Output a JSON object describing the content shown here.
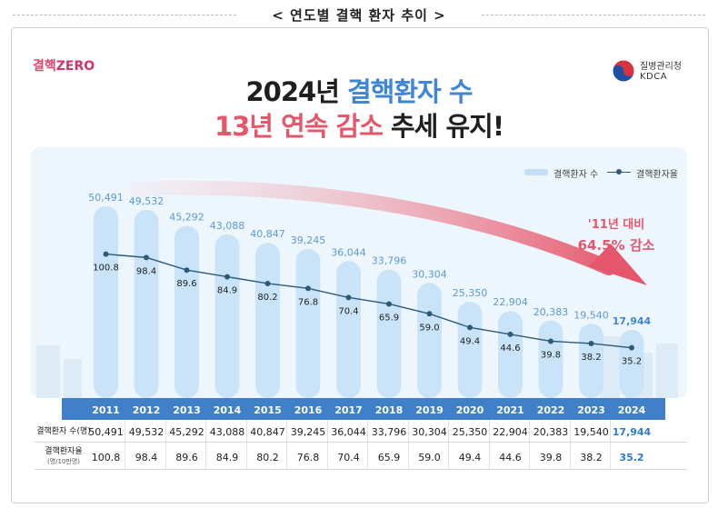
{
  "page_title": "< 연도별 결핵 환자 추이 >",
  "brand_logo": {
    "text": "결핵",
    "suffix": "ZERO"
  },
  "agency": {
    "name": "질병관리청",
    "abbr": "KDCA"
  },
  "headline": {
    "line1_year": "2024년",
    "line1_highlight": "결핵환자 수",
    "line2_highlight": "13년 연속 감소",
    "line2_rest": "추세 유지!"
  },
  "legend": {
    "bars": "결핵환자 수",
    "line": "결핵환자율"
  },
  "callout": {
    "line1": "'11년 대비",
    "line2": "64.5% 감소"
  },
  "table": {
    "row1_label": "결핵환자 수(명)",
    "row2_label": "결핵환자율",
    "row2_unit": "(명/10만명)"
  },
  "colors": {
    "bar": "#c9e4f9",
    "line": "#2d5a7b",
    "year_row": "#3f80c8",
    "highlight_blue": "#3f86d6",
    "highlight_red": "#e5566a"
  },
  "chart_data": {
    "type": "bar",
    "title": "2024년 결핵환자 수 13년 연속 감소 추세 유지!",
    "categories": [
      "2011",
      "2012",
      "2013",
      "2014",
      "2015",
      "2016",
      "2017",
      "2018",
      "2019",
      "2020",
      "2021",
      "2022",
      "2023",
      "2024"
    ],
    "series": [
      {
        "name": "결핵환자 수",
        "type": "bar",
        "values": [
          50491,
          49532,
          45292,
          43088,
          40847,
          39245,
          36044,
          33796,
          30304,
          25350,
          22904,
          20383,
          19540,
          17944
        ],
        "labels": [
          "50,491",
          "49,532",
          "45,292",
          "43,088",
          "40,847",
          "39,245",
          "36,044",
          "33,796",
          "30,304",
          "25,350",
          "22,904",
          "20,383",
          "19,540",
          "17,944"
        ]
      },
      {
        "name": "결핵환자율",
        "type": "line",
        "values": [
          100.8,
          98.4,
          89.6,
          84.9,
          80.2,
          76.8,
          70.4,
          65.9,
          59.0,
          49.4,
          44.6,
          39.8,
          38.2,
          35.2
        ],
        "labels": [
          "100.8",
          "98.4",
          "89.6",
          "84.9",
          "80.2",
          "76.8",
          "70.4",
          "65.9",
          "59.0",
          "49.4",
          "44.6",
          "39.8",
          "38.2",
          "35.2"
        ]
      }
    ],
    "xlabel": "",
    "ylabel": "",
    "ylim": [
      0,
      55000
    ],
    "ylim_secondary": [
      0,
      140
    ],
    "legend_position": "top-right",
    "grid": false
  }
}
